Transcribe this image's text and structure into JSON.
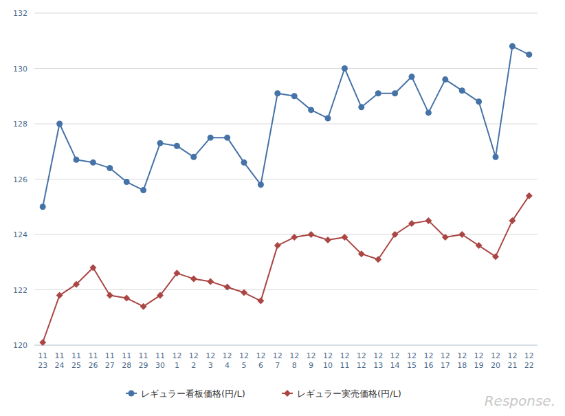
{
  "chart_data": {
    "type": "line",
    "categories": [
      "11\n23",
      "11\n24",
      "11\n25",
      "11\n26",
      "11\n27",
      "11\n28",
      "11\n29",
      "11\n30",
      "12\n1",
      "12\n2",
      "12\n3",
      "12\n4",
      "12\n5",
      "12\n6",
      "12\n7",
      "12\n8",
      "12\n9",
      "12\n10",
      "12\n11",
      "12\n12",
      "12\n13",
      "12\n14",
      "12\n15",
      "12\n16",
      "12\n17",
      "12\n18",
      "12\n19",
      "12\n20",
      "12\n21",
      "12\n22"
    ],
    "series": [
      {
        "name": "レギュラー看板価格(円/L)",
        "color": "#4572a7",
        "marker": "circle",
        "values": [
          125.0,
          128.0,
          126.7,
          126.6,
          126.4,
          125.9,
          125.6,
          127.3,
          127.2,
          126.8,
          127.5,
          127.5,
          126.6,
          125.8,
          129.1,
          129.0,
          128.5,
          128.2,
          130.0,
          128.6,
          129.1,
          129.1,
          129.7,
          128.4,
          129.6,
          129.2,
          128.8,
          126.8,
          130.8,
          130.5
        ]
      },
      {
        "name": "レギュラー実売価格(円/L)",
        "color": "#aa4643",
        "marker": "diamond",
        "values": [
          120.1,
          121.8,
          122.2,
          122.8,
          121.8,
          121.7,
          121.4,
          121.8,
          122.6,
          122.4,
          122.3,
          122.1,
          121.9,
          121.6,
          123.6,
          123.9,
          124.0,
          123.8,
          123.9,
          123.3,
          123.1,
          124.0,
          124.4,
          124.5,
          123.9,
          124.0,
          123.6,
          123.2,
          124.5,
          125.4
        ]
      }
    ],
    "ylim": [
      120,
      132
    ],
    "yticks": [
      120,
      122,
      124,
      126,
      128,
      130,
      132
    ],
    "grid": true,
    "legend": "bottom",
    "source": "Response."
  }
}
